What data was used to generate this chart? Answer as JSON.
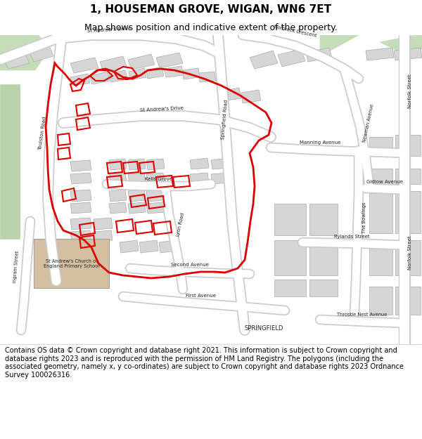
{
  "title": "1, HOUSEMAN GROVE, WIGAN, WN6 7ET",
  "subtitle": "Map shows position and indicative extent of the property.",
  "footer": "Contains OS data © Crown copyright and database right 2021. This information is subject to Crown copyright and database rights 2023 and is reproduced with the permission of HM Land Registry. The polygons (including the associated geometry, namely x, y co-ordinates) are subject to Crown copyright and database rights 2023 Ordnance Survey 100026316.",
  "map_bg": "#eeeeee",
  "road_color": "#ffffff",
  "road_outline": "#cccccc",
  "building_color": "#d6d6d6",
  "building_outline": "#aaaaaa",
  "green1": "#c5ddb8",
  "green2": "#b8d4a8",
  "tan": "#d4bfa0",
  "red": "#dd0000",
  "title_fs": 11,
  "subtitle_fs": 9,
  "footer_fs": 7,
  "label_fs": 5.5,
  "label_color": "#222222"
}
